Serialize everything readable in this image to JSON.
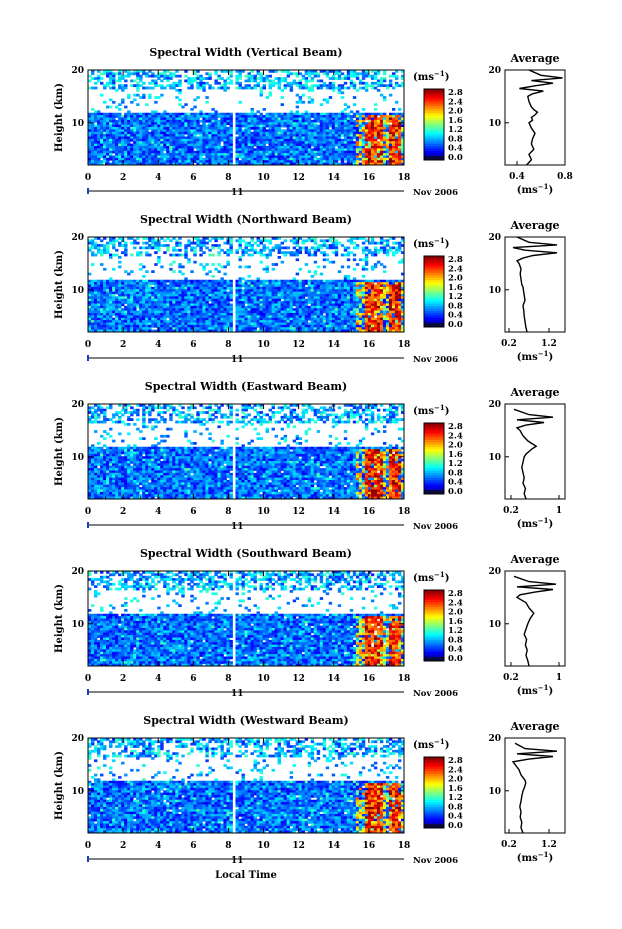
{
  "figure": {
    "xlabel": "Local Time",
    "date_label": "Nov 2006",
    "day_label": "11",
    "ylabel": "Height (km)",
    "units": "(ms",
    "units_sup": "−1",
    "average_title": "Average",
    "colorbar_ticks": [
      "2.8",
      "2.4",
      "2.0",
      "1.6",
      "1.2",
      "0.8",
      "0.4",
      "0.0"
    ]
  },
  "chart_data": [
    {
      "type": "heatmap",
      "title": "Spectral Width (Vertical Beam)",
      "ylabel": "Height (km)",
      "xlim": [
        0,
        18
      ],
      "ylim": [
        2,
        20
      ],
      "xticks": [
        0,
        2,
        4,
        6,
        8,
        10,
        12,
        14,
        16,
        18
      ],
      "yticks": [
        10,
        20
      ],
      "colorbar": {
        "label": "(ms-1)",
        "range": [
          0.0,
          2.8
        ]
      },
      "profile": {
        "title": "Average",
        "xlabel": "(ms-1)",
        "xlim": [
          0.3,
          0.8
        ],
        "xticks": [
          0.4,
          0.8
        ],
        "ylim": [
          2,
          20
        ],
        "yticks": [
          10,
          20
        ],
        "x": [
          0.48,
          0.52,
          0.5,
          0.54,
          0.52,
          0.53,
          0.55,
          0.52,
          0.5,
          0.53,
          0.52,
          0.55,
          0.57,
          0.54,
          0.52,
          0.5,
          0.49,
          0.53,
          0.62,
          0.42,
          0.55,
          0.7,
          0.52,
          0.78,
          0.6,
          0.5
        ],
        "y": [
          2,
          3,
          4,
          5,
          6,
          7,
          8,
          9,
          10,
          10.5,
          11,
          11.5,
          12,
          12.5,
          13,
          14,
          15,
          15.5,
          16,
          16.5,
          17,
          17.5,
          18,
          18.5,
          19,
          20
        ]
      }
    },
    {
      "type": "heatmap",
      "title": "Spectral Width (Northward Beam)",
      "ylabel": "Height (km)",
      "xlim": [
        0,
        18
      ],
      "ylim": [
        2,
        20
      ],
      "xticks": [
        0,
        2,
        4,
        6,
        8,
        10,
        12,
        14,
        16,
        18
      ],
      "yticks": [
        10,
        20
      ],
      "colorbar": {
        "label": "(ms-1)",
        "range": [
          0.0,
          2.8
        ]
      },
      "profile": {
        "title": "Average",
        "xlabel": "(ms-1)",
        "xlim": [
          0.1,
          1.6
        ],
        "xticks": [
          0.2,
          1.2
        ],
        "ylim": [
          2,
          20
        ],
        "yticks": [
          10,
          20
        ],
        "x": [
          0.65,
          0.62,
          0.6,
          0.58,
          0.57,
          0.55,
          0.6,
          0.58,
          0.56,
          0.55,
          0.52,
          0.5,
          0.48,
          0.5,
          0.45,
          0.4,
          0.55,
          0.8,
          1.4,
          0.6,
          0.3,
          1.4,
          0.7,
          0.4
        ],
        "y": [
          2,
          3,
          4,
          5,
          6,
          7,
          8,
          9,
          10,
          10.5,
          11,
          12,
          13,
          14,
          15,
          15.5,
          16,
          16.5,
          17,
          17.5,
          18,
          18.5,
          19,
          20
        ]
      }
    },
    {
      "type": "heatmap",
      "title": "Spectral Width (Eastward Beam)",
      "ylabel": "Height (km)",
      "xlim": [
        0,
        18
      ],
      "ylim": [
        2,
        20
      ],
      "xticks": [
        0,
        2,
        4,
        6,
        8,
        10,
        12,
        14,
        16,
        18
      ],
      "yticks": [
        10,
        20
      ],
      "colorbar": {
        "label": "(ms-1)",
        "range": [
          0.0,
          2.8
        ]
      },
      "profile": {
        "title": "Average",
        "xlabel": "(ms-1)",
        "xlim": [
          0.1,
          1.1
        ],
        "xticks": [
          0.2,
          1.0
        ],
        "ylim": [
          2,
          20
        ],
        "yticks": [
          10,
          20
        ],
        "x": [
          0.45,
          0.42,
          0.44,
          0.4,
          0.42,
          0.4,
          0.38,
          0.4,
          0.42,
          0.45,
          0.5,
          0.55,
          0.62,
          0.55,
          0.48,
          0.4,
          0.35,
          0.3,
          0.45,
          0.75,
          0.3,
          0.9,
          0.5,
          0.25
        ],
        "y": [
          2,
          3,
          4,
          5,
          6,
          7,
          8,
          9,
          10,
          10.5,
          11,
          11.5,
          12,
          12.5,
          13,
          14,
          15,
          15.5,
          16,
          16.5,
          17,
          17.5,
          18,
          19
        ]
      }
    },
    {
      "type": "heatmap",
      "title": "Spectral Width (Southward Beam)",
      "ylabel": "Height (km)",
      "xlim": [
        0,
        18
      ],
      "ylim": [
        2,
        20
      ],
      "xticks": [
        0,
        2,
        4,
        6,
        8,
        10,
        12,
        14,
        16,
        18
      ],
      "yticks": [
        10,
        20
      ],
      "colorbar": {
        "label": "(ms-1)",
        "range": [
          0.0,
          2.8
        ]
      },
      "profile": {
        "title": "Average",
        "xlabel": "(ms-1)",
        "xlim": [
          0.1,
          1.1
        ],
        "xticks": [
          0.2,
          1.0
        ],
        "ylim": [
          2,
          20
        ],
        "yticks": [
          10,
          20
        ],
        "x": [
          0.5,
          0.48,
          0.45,
          0.47,
          0.44,
          0.46,
          0.42,
          0.45,
          0.48,
          0.5,
          0.52,
          0.55,
          0.58,
          0.54,
          0.5,
          0.45,
          0.3,
          0.35,
          0.6,
          0.9,
          0.3,
          0.95,
          0.5,
          0.25
        ],
        "y": [
          2,
          3,
          4,
          5,
          6,
          7,
          8,
          9,
          10,
          10.5,
          11,
          11.5,
          12,
          12.5,
          13,
          14,
          15,
          15.5,
          16,
          16.5,
          17,
          17.5,
          18,
          19
        ]
      }
    },
    {
      "type": "heatmap",
      "title": "Spectral Width (Westward Beam)",
      "ylabel": "Height (km)",
      "xlim": [
        0,
        18
      ],
      "ylim": [
        2,
        20
      ],
      "xticks": [
        0,
        2,
        4,
        6,
        8,
        10,
        12,
        14,
        16,
        18
      ],
      "yticks": [
        10,
        20
      ],
      "colorbar": {
        "label": "(ms-1)",
        "range": [
          0.0,
          2.8
        ]
      },
      "profile": {
        "title": "Average",
        "xlabel": "(ms-1)",
        "xlim": [
          0.1,
          1.6
        ],
        "xticks": [
          0.2,
          1.2
        ],
        "ylim": [
          2,
          20
        ],
        "yticks": [
          10,
          20
        ],
        "x": [
          0.55,
          0.5,
          0.52,
          0.48,
          0.5,
          0.47,
          0.5,
          0.52,
          0.55,
          0.58,
          0.6,
          0.62,
          0.6,
          0.55,
          0.5,
          0.45,
          0.35,
          0.3,
          0.7,
          1.3,
          0.4,
          1.4,
          0.6,
          0.35
        ],
        "y": [
          2,
          3,
          4,
          5,
          6,
          7,
          8,
          9,
          10,
          10.5,
          11,
          11.5,
          12,
          12.5,
          13,
          14,
          15,
          15.5,
          16,
          16.5,
          17,
          17.5,
          18,
          19
        ]
      }
    }
  ]
}
